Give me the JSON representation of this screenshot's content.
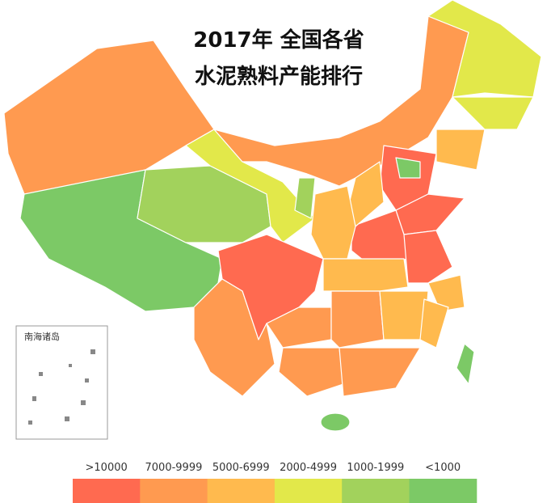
{
  "title": "2017年 全国各省",
  "subtitle": "水泥熟料产能排行",
  "inset_label": "南海诸岛",
  "legend": [
    {
      "label": ">10000",
      "color": "#ff6a50"
    },
    {
      "label": "7000-9999",
      "color": "#ff9a50"
    },
    {
      "label": "5000-6999",
      "color": "#ffba4e"
    },
    {
      "label": "2000-4999",
      "color": "#e2e84a"
    },
    {
      "label": "1000-1999",
      "color": "#a2d25c"
    },
    {
      "label": "<1000",
      "color": "#7cc966"
    }
  ]
}
